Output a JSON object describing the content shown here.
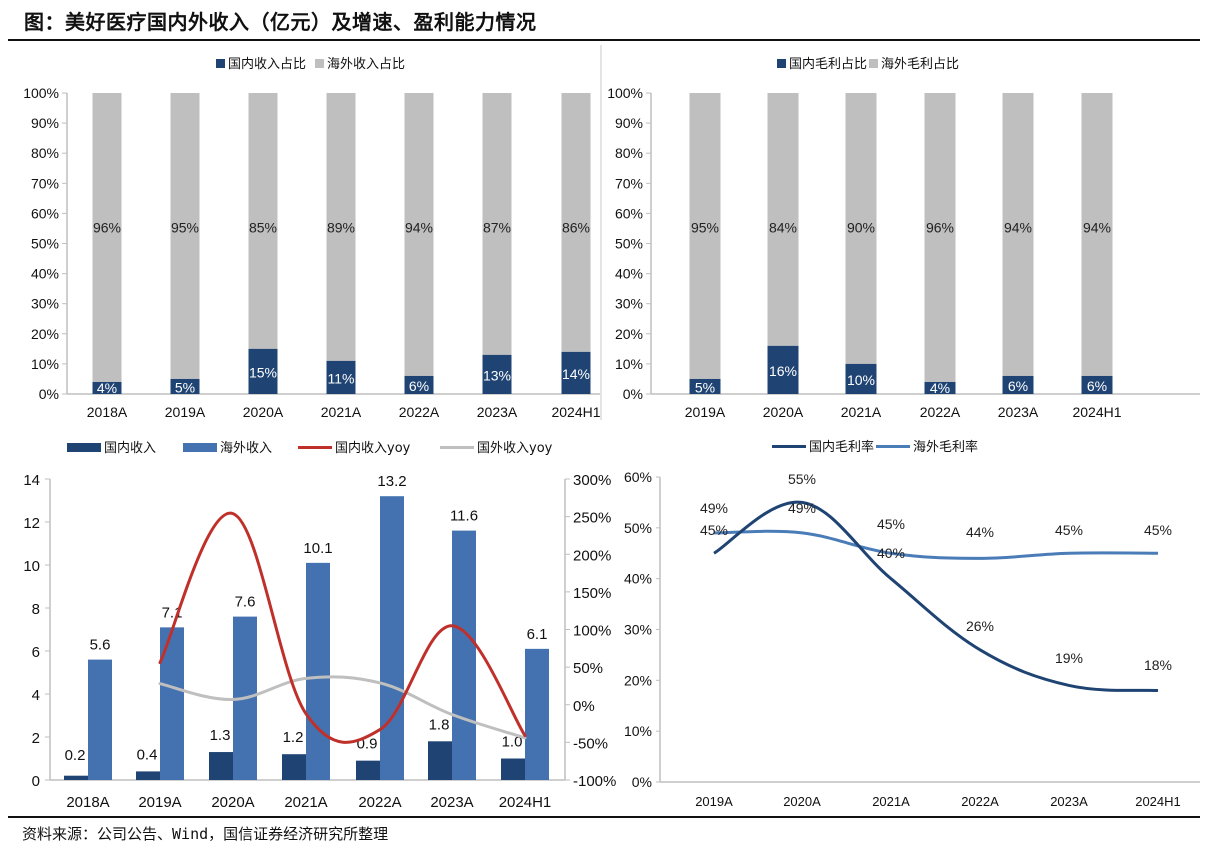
{
  "title": "图：美好医疗国内外收入（亿元）及增速、盈利能力情况",
  "source": "资料来源：公司公告、Wind，国信证券经济研究所整理",
  "colors": {
    "domestic": "#1F4473",
    "overseas_gray": "#BFBFBF",
    "overseas_blue": "#4472B0",
    "domestic_yoy": "#C0302B",
    "overseas_yoy": "#BFBFBF",
    "overseas_margin": "#4A7DB8",
    "axis": "#BFBFBF"
  },
  "chart_data": [
    {
      "id": "revenue-share",
      "type": "bar",
      "stacked": true,
      "title": "",
      "categories": [
        "2018A",
        "2019A",
        "2020A",
        "2021A",
        "2022A",
        "2023A",
        "2024H1"
      ],
      "series": [
        {
          "name": "国内收入占比",
          "values": [
            4,
            5,
            15,
            11,
            6,
            13,
            14
          ],
          "labels": [
            "4%",
            "5%",
            "15%",
            "11%",
            "6%",
            "13%",
            "14%"
          ]
        },
        {
          "name": "海外收入占比",
          "values": [
            96,
            95,
            85,
            89,
            94,
            87,
            86
          ],
          "labels": [
            "96%",
            "95%",
            "85%",
            "89%",
            "94%",
            "87%",
            "86%"
          ]
        }
      ],
      "ylim": [
        0,
        100
      ],
      "yticks": [
        "0%",
        "10%",
        "20%",
        "30%",
        "40%",
        "50%",
        "60%",
        "70%",
        "80%",
        "90%",
        "100%"
      ],
      "legend": "top-center",
      "grid": false
    },
    {
      "id": "gross-profit-share",
      "type": "bar",
      "stacked": true,
      "title": "",
      "categories": [
        "2019A",
        "2020A",
        "2021A",
        "2022A",
        "2023A",
        "2024H1"
      ],
      "series": [
        {
          "name": "国内毛利占比",
          "values": [
            5,
            16,
            10,
            4,
            6,
            6
          ],
          "labels": [
            "5%",
            "16%",
            "10%",
            "4%",
            "6%",
            "6%"
          ]
        },
        {
          "name": "海外毛利占比",
          "values": [
            95,
            84,
            90,
            96,
            94,
            94
          ],
          "labels": [
            "95%",
            "84%",
            "90%",
            "96%",
            "94%",
            "94%"
          ]
        }
      ],
      "ylim": [
        0,
        100
      ],
      "yticks": [
        "0%",
        "10%",
        "20%",
        "30%",
        "40%",
        "50%",
        "60%",
        "70%",
        "80%",
        "90%",
        "100%"
      ],
      "legend": "top-center",
      "grid": false
    },
    {
      "id": "revenue-growth",
      "type": "bar",
      "title": "",
      "categories": [
        "2018A",
        "2019A",
        "2020A",
        "2021A",
        "2022A",
        "2023A",
        "2024H1"
      ],
      "series": [
        {
          "name": "国内收入",
          "kind": "bar",
          "axis": "left",
          "values": [
            0.2,
            0.4,
            1.3,
            1.2,
            0.9,
            1.8,
            1.0
          ],
          "labels": [
            "0.2",
            "0.4",
            "1.3",
            "1.2",
            "0.9",
            "1.8",
            "1.0"
          ]
        },
        {
          "name": "海外收入",
          "kind": "bar",
          "axis": "left",
          "values": [
            5.6,
            7.1,
            7.6,
            10.1,
            13.2,
            11.6,
            6.1
          ],
          "labels": [
            "5.6",
            "7.1",
            "7.6",
            "10.1",
            "13.2",
            "11.6",
            "6.1"
          ]
        },
        {
          "name": "国内收入yoy",
          "kind": "line",
          "axis": "right",
          "values": [
            null,
            56,
            254,
            -12,
            -33,
            105,
            -41
          ]
        },
        {
          "name": "国外收入yoy",
          "kind": "line",
          "axis": "right",
          "values": [
            null,
            28,
            7,
            35,
            29,
            -13,
            -44
          ]
        }
      ],
      "ylim": [
        0,
        14
      ],
      "yticks": [
        "0",
        "2",
        "4",
        "6",
        "8",
        "10",
        "12",
        "14"
      ],
      "y2lim": [
        -100,
        300
      ],
      "y2ticks": [
        "-100%",
        "-50%",
        "0%",
        "50%",
        "100%",
        "150%",
        "200%",
        "250%",
        "300%"
      ],
      "legend": "top-center",
      "grid": false
    },
    {
      "id": "gross-margin",
      "type": "line",
      "title": "",
      "categories": [
        "2019A",
        "2020A",
        "2021A",
        "2022A",
        "2023A",
        "2024H1"
      ],
      "series": [
        {
          "name": "国内毛利率",
          "values": [
            45,
            55,
            40,
            26,
            19,
            18
          ],
          "labels": [
            "45%",
            "55%",
            "40%",
            "26%",
            "19%",
            "18%"
          ]
        },
        {
          "name": "海外毛利率",
          "values": [
            49,
            49,
            45,
            44,
            45,
            45
          ],
          "labels": [
            "49%",
            "49%",
            "45%",
            "44%",
            "45%",
            "45%"
          ]
        }
      ],
      "ylim": [
        0,
        60
      ],
      "yticks": [
        "0%",
        "10%",
        "20%",
        "30%",
        "40%",
        "50%",
        "60%"
      ],
      "legend": "top-center",
      "grid": false
    }
  ]
}
